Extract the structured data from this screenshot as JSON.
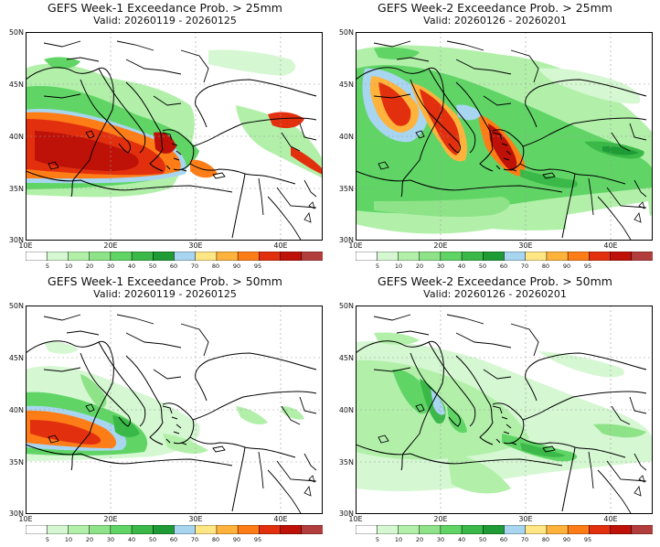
{
  "panels": [
    {
      "title": "GEFS Week-1 Exceedance Prob. > 25mm",
      "valid": "Valid: 20260119 - 20260125"
    },
    {
      "title": "GEFS Week-2 Exceedance Prob. > 25mm",
      "valid": "Valid: 20260126 - 20260201"
    },
    {
      "title": "GEFS Week-1 Exceedance Prob. > 50mm",
      "valid": "Valid: 20260119 - 20260125"
    },
    {
      "title": "GEFS Week-2 Exceedance Prob. > 50mm",
      "valid": "Valid: 20260126 - 20260201"
    }
  ],
  "lat_labels": [
    "50N",
    "45N",
    "40N",
    "35N",
    "30N"
  ],
  "lon_labels": [
    "10E",
    "20E",
    "30E",
    "40E"
  ],
  "colorbar": {
    "levels": [
      "5",
      "10",
      "20",
      "30",
      "40",
      "50",
      "60",
      "70",
      "80",
      "90",
      "95"
    ],
    "colors": [
      "#ffffff",
      "#d5f7d2",
      "#b2f0aa",
      "#8ee388",
      "#60d566",
      "#3ab848",
      "#1f9b36",
      "#a8d5f0",
      "#ffe685",
      "#ffb33c",
      "#ff7d17",
      "#e2300f",
      "#be1209",
      "#b23d3d"
    ]
  },
  "colors": {
    "land_line": "#000000",
    "grid": "#9a9a9a"
  }
}
